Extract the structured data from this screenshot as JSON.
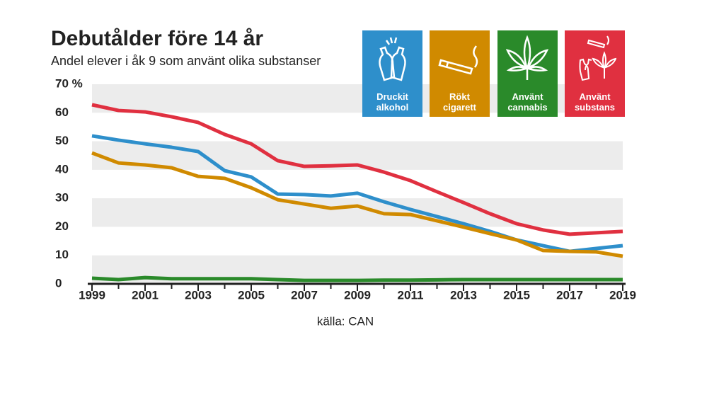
{
  "chart_data": {
    "type": "line",
    "title": "Debutålder före 14 år",
    "subtitle": "Andel elever i åk 9 som använt olika substanser",
    "source": "källa: CAN",
    "x": [
      1999,
      2000,
      2001,
      2002,
      2003,
      2004,
      2005,
      2006,
      2007,
      2008,
      2009,
      2010,
      2011,
      2012,
      2013,
      2014,
      2015,
      2016,
      2017,
      2018,
      2019
    ],
    "xlim": [
      1999,
      2019
    ],
    "xticks": [
      1999,
      2001,
      2003,
      2005,
      2007,
      2009,
      2011,
      2013,
      2015,
      2017,
      2019
    ],
    "ylim": [
      0,
      70
    ],
    "yticks": [
      0,
      10,
      20,
      30,
      40,
      50,
      60,
      {
        "value": 70,
        "label": "70 %"
      }
    ],
    "grid": "bands",
    "series": [
      {
        "name": "Druckit alkohol",
        "color": "#2e8fcb",
        "values": [
          51.9,
          50.4,
          49.1,
          47.9,
          46.4,
          39.7,
          37.5,
          31.5,
          31.3,
          30.8,
          31.8,
          28.8,
          26.1,
          23.6,
          21.1,
          18.4,
          15.4,
          13.4,
          11.4,
          12.4,
          13.4
        ]
      },
      {
        "name": "Rökt cigarett",
        "color": "#d08a00",
        "values": [
          45.9,
          42.4,
          41.7,
          40.7,
          37.7,
          37.0,
          33.7,
          29.5,
          28.0,
          26.5,
          27.3,
          24.6,
          24.3,
          22.1,
          19.9,
          17.6,
          15.4,
          11.7,
          11.4,
          11.2,
          9.7
        ]
      },
      {
        "name": "Använt cannabis",
        "color": "#2a8a2a",
        "values": [
          2.0,
          1.5,
          2.2,
          1.8,
          1.8,
          1.8,
          1.8,
          1.5,
          1.2,
          1.2,
          1.2,
          1.3,
          1.3,
          1.4,
          1.5,
          1.5,
          1.5,
          1.5,
          1.5,
          1.5,
          1.5
        ]
      },
      {
        "name": "Använt substans",
        "color": "#e03040",
        "values": [
          62.8,
          60.8,
          60.3,
          58.6,
          56.6,
          52.4,
          49.1,
          43.2,
          41.2,
          41.4,
          41.7,
          39.2,
          36.2,
          32.3,
          28.5,
          24.6,
          21.1,
          18.9,
          17.4,
          17.9,
          18.4
        ]
      }
    ]
  }
}
